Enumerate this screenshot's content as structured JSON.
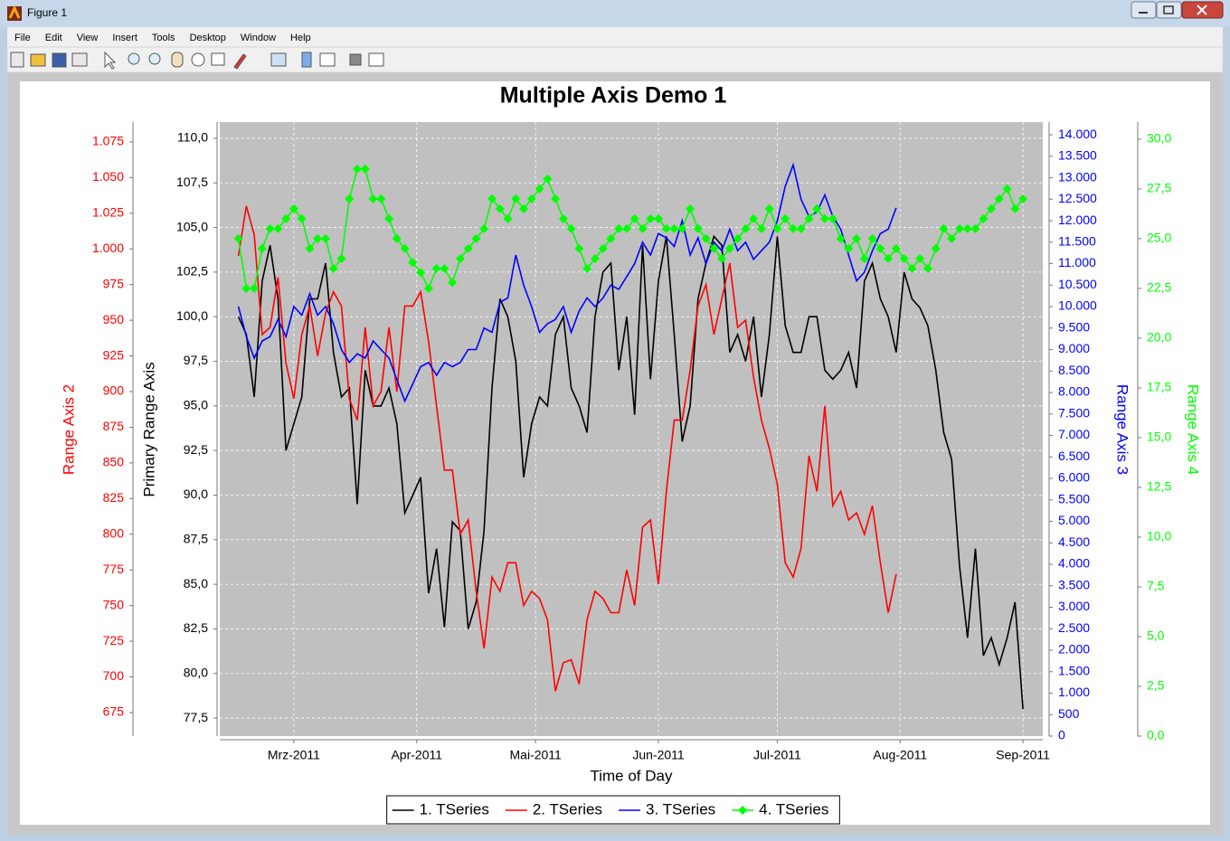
{
  "window": {
    "title": "Figure 1",
    "menu": [
      "File",
      "Edit",
      "View",
      "Insert",
      "Tools",
      "Desktop",
      "Window",
      "Help"
    ]
  },
  "chart_data": {
    "type": "line",
    "title": "Multiple Axis Demo 1",
    "xlabel": "Time of Day",
    "ylabel": "Primary Range Axis",
    "y2label": "Range Axis 2",
    "y3label": "Range Axis 3",
    "y4label": "Range Axis 4",
    "grid": true,
    "legend": "bottom",
    "plot_background": "#c0c0c0",
    "x": [
      -14,
      -12,
      -10,
      -8,
      -6,
      -4,
      -2,
      0,
      2,
      4,
      6,
      8,
      10,
      12,
      14,
      16,
      18,
      20,
      22,
      24,
      26,
      28,
      30,
      32,
      34,
      36,
      38,
      40,
      42,
      44,
      46,
      48,
      50,
      52,
      54,
      56,
      58,
      60,
      62,
      64,
      66,
      68,
      70,
      72,
      74,
      76,
      78,
      80,
      82,
      84,
      86,
      88,
      90,
      92,
      94,
      96,
      98,
      100,
      102,
      104,
      106,
      108,
      110,
      112,
      114,
      116,
      118,
      120,
      122,
      124,
      126,
      128,
      130,
      132,
      134,
      136,
      138,
      140,
      142,
      144,
      146,
      148,
      150,
      152,
      154,
      156,
      158,
      160,
      162,
      164,
      166,
      168,
      170,
      172,
      174,
      176,
      178,
      180,
      182,
      184
    ],
    "xlim": [
      -18.7,
      189
    ],
    "xticks": [
      {
        "value": 0,
        "label": "Mrz-2011"
      },
      {
        "value": 31,
        "label": "Apr-2011"
      },
      {
        "value": 61,
        "label": "Mai-2011"
      },
      {
        "value": 92,
        "label": "Jun-2011"
      },
      {
        "value": 122,
        "label": "Jul-2011"
      },
      {
        "value": 153,
        "label": "Aug-2011"
      },
      {
        "value": 184,
        "label": "Sep-2011"
      }
    ],
    "ylim": [
      76.49,
      110.91
    ],
    "yticks": [
      {
        "value": 77.5,
        "label": "77,5"
      },
      {
        "value": 80,
        "label": "80,0"
      },
      {
        "value": 82.5,
        "label": "82,5"
      },
      {
        "value": 85,
        "label": "85,0"
      },
      {
        "value": 87.5,
        "label": "87,5"
      },
      {
        "value": 90,
        "label": "90,0"
      },
      {
        "value": 92.5,
        "label": "92,5"
      },
      {
        "value": 95,
        "label": "95,0"
      },
      {
        "value": 97.5,
        "label": "97,5"
      },
      {
        "value": 100,
        "label": "100,0"
      },
      {
        "value": 102.5,
        "label": "102,5"
      },
      {
        "value": 105,
        "label": "105,0"
      },
      {
        "value": 107.5,
        "label": "107,5"
      },
      {
        "value": 110,
        "label": "110,0"
      }
    ],
    "y2lim": [
      658.5,
      1088.9
    ],
    "y2ticks": [
      675,
      700,
      725,
      750,
      775,
      800,
      825,
      850,
      875,
      900,
      925,
      950,
      975,
      {
        "value": 1000,
        "label": "1.000"
      },
      {
        "value": 1025,
        "label": "1.025"
      },
      {
        "value": 1050,
        "label": "1.050"
      },
      {
        "value": 1075,
        "label": "1.075"
      }
    ],
    "y3lim": [
      0,
      14296
    ],
    "y3ticks": [
      0,
      500,
      {
        "value": 1000,
        "label": "1.000"
      },
      {
        "value": 1500,
        "label": "1.500"
      },
      {
        "value": 2000,
        "label": "2.000"
      },
      {
        "value": 2500,
        "label": "2.500"
      },
      {
        "value": 3000,
        "label": "3.000"
      },
      {
        "value": 3500,
        "label": "3.500"
      },
      {
        "value": 4000,
        "label": "4.000"
      },
      {
        "value": 4500,
        "label": "4.500"
      },
      {
        "value": 5000,
        "label": "5.000"
      },
      {
        "value": 5500,
        "label": "5.500"
      },
      {
        "value": 6000,
        "label": "6.000"
      },
      {
        "value": 6500,
        "label": "6.500"
      },
      {
        "value": 7000,
        "label": "7.000"
      },
      {
        "value": 7500,
        "label": "7.500"
      },
      {
        "value": 8000,
        "label": "8.000"
      },
      {
        "value": 8500,
        "label": "8.500"
      },
      {
        "value": 9000,
        "label": "9.000"
      },
      {
        "value": 9500,
        "label": "9.500"
      },
      {
        "value": 10000,
        "label": "10.000"
      },
      {
        "value": 10500,
        "label": "10.500"
      },
      {
        "value": 11000,
        "label": "11.000"
      },
      {
        "value": 11500,
        "label": "11.500"
      },
      {
        "value": 12000,
        "label": "12.000"
      },
      {
        "value": 12500,
        "label": "12.500"
      },
      {
        "value": 13000,
        "label": "13.000"
      },
      {
        "value": 13500,
        "label": "13.500"
      },
      {
        "value": 14000,
        "label": "14.000"
      }
    ],
    "y4lim": [
      0,
      30.86
    ],
    "y4ticks": [
      {
        "value": 0,
        "label": "0,0"
      },
      {
        "value": 2.5,
        "label": "2,5"
      },
      {
        "value": 5,
        "label": "5,0"
      },
      {
        "value": 7.5,
        "label": "7,5"
      },
      {
        "value": 10,
        "label": "10,0"
      },
      {
        "value": 12.5,
        "label": "12,5"
      },
      {
        "value": 15,
        "label": "15,0"
      },
      {
        "value": 17.5,
        "label": "17,5"
      },
      {
        "value": 20,
        "label": "20,0"
      },
      {
        "value": 22.5,
        "label": "22,5"
      },
      {
        "value": 25,
        "label": "25,0"
      },
      {
        "value": 27.5,
        "label": "27,5"
      },
      {
        "value": 30,
        "label": "30,0"
      }
    ],
    "series": [
      {
        "name": "1. TSeries",
        "color": "#000000",
        "axis": "y",
        "values": [
          100,
          99,
          95.5,
          102,
          104,
          101,
          92.5,
          94,
          95.5,
          101,
          101,
          103,
          98,
          95.5,
          96,
          89.5,
          97,
          95,
          95,
          96,
          94,
          89,
          90,
          91,
          84.5,
          87,
          82.6,
          88.5,
          88,
          82.5,
          84,
          88,
          96,
          101,
          100,
          97.5,
          91,
          94,
          95.5,
          95,
          99,
          100,
          96,
          95,
          93.5,
          100,
          102.5,
          103,
          97,
          100,
          94.5,
          104,
          96.5,
          102,
          104.5,
          99,
          93,
          95,
          101,
          103,
          104.5,
          104,
          98,
          99,
          97.5,
          100,
          95.5,
          99,
          104.5,
          99.5,
          98,
          98,
          100,
          100,
          97,
          96.5,
          97,
          98,
          96,
          102,
          103,
          101,
          100,
          98,
          102.5,
          101,
          100.5,
          99.5,
          97,
          93.5,
          92,
          86,
          82,
          87,
          81,
          82,
          80.5,
          82,
          84,
          78
        ]
      },
      {
        "name": "2. TSeries",
        "color": "#ff0000",
        "axis": "y2",
        "values": [
          995,
          1030,
          1010,
          940,
          945,
          980,
          920,
          895,
          940,
          960,
          925,
          955,
          970,
          960,
          895,
          880,
          945,
          890,
          900,
          945,
          900,
          960,
          960,
          970,
          935,
          890,
          845,
          845,
          800,
          810,
          760,
          720,
          770,
          760,
          780,
          780,
          750,
          760,
          755,
          740,
          690,
          710,
          712,
          695,
          740,
          760,
          755,
          745,
          745,
          775,
          750,
          805,
          810,
          765,
          830,
          880,
          880,
          915,
          960,
          975,
          940,
          965,
          990,
          945,
          950,
          910,
          880,
          860,
          835,
          780,
          770,
          790,
          855,
          830,
          890,
          820,
          830,
          810,
          815,
          800,
          820,
          780,
          745,
          772,
          null,
          null,
          null,
          null,
          null,
          null,
          null,
          null,
          null,
          null,
          null,
          null,
          null,
          null,
          null,
          null
        ]
      },
      {
        "name": "3. TSeries",
        "color": "#0000ff",
        "axis": "y3",
        "values": [
          10000,
          9300,
          8800,
          9200,
          9300,
          9700,
          9300,
          10000,
          9800,
          10300,
          9800,
          10000,
          9600,
          9000,
          8700,
          8900,
          8800,
          9200,
          9000,
          8800,
          8300,
          7800,
          8200,
          8600,
          8700,
          8400,
          8700,
          8600,
          8700,
          9000,
          9000,
          9500,
          9400,
          10100,
          10200,
          11200,
          10500,
          10000,
          9400,
          9600,
          9700,
          10000,
          9400,
          9900,
          10200,
          10000,
          10200,
          10500,
          10400,
          10700,
          11000,
          11500,
          11200,
          11700,
          11600,
          11400,
          12000,
          11200,
          11600,
          11000,
          11500,
          11300,
          11800,
          11300,
          11500,
          11100,
          11300,
          11500,
          12000,
          12800,
          13300,
          12500,
          12100,
          12200,
          12600,
          12100,
          11800,
          11200,
          10600,
          10800,
          11300,
          11700,
          11800,
          12300,
          null,
          null,
          null,
          null,
          null,
          null,
          null,
          null,
          null,
          null,
          null,
          null,
          null,
          null,
          null,
          null
        ]
      },
      {
        "name": "4. TSeries",
        "color": "#00ff00",
        "axis": "y4",
        "marker": "diamond",
        "values": [
          25,
          22.5,
          22.5,
          24.5,
          25.5,
          25.5,
          26,
          26.5,
          26,
          24.5,
          25,
          25,
          23.5,
          24,
          27,
          28.5,
          28.5,
          27,
          27,
          26,
          25,
          24.5,
          23.8,
          23.3,
          22.5,
          23.5,
          23.5,
          22.8,
          24,
          24.5,
          25,
          25.5,
          27,
          26.5,
          26,
          27,
          26.5,
          27,
          27.5,
          28,
          27,
          26,
          25.5,
          24.5,
          23.5,
          24,
          24.5,
          25,
          25.5,
          25.5,
          26,
          25.5,
          26,
          26,
          25.5,
          25.5,
          25.5,
          26.5,
          25.5,
          25,
          24.5,
          24,
          24.5,
          25,
          25.5,
          26,
          25.5,
          26.5,
          25.5,
          26,
          25.5,
          25.5,
          26,
          26.5,
          26,
          26,
          25,
          24.5,
          25,
          24,
          25,
          24.5,
          24,
          24.5,
          24,
          23.5,
          24,
          23.5,
          24.5,
          25.5,
          25,
          25.5,
          25.5,
          25.5,
          26,
          26.5,
          27,
          27.5,
          26.5,
          27
        ]
      }
    ]
  }
}
